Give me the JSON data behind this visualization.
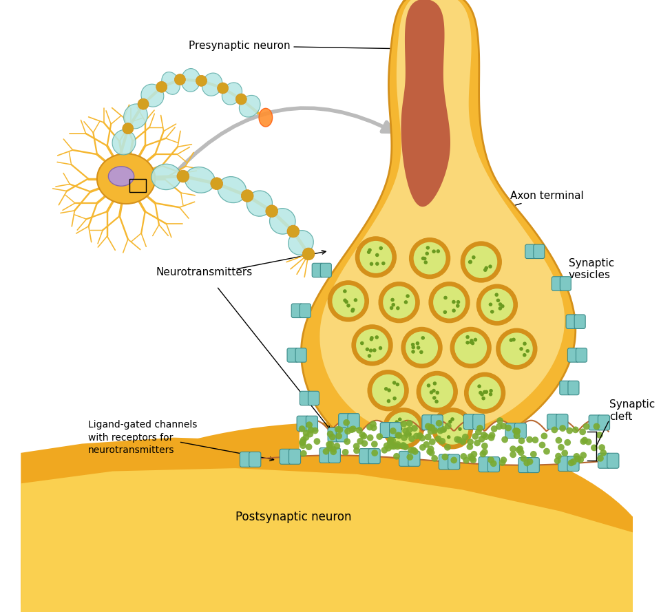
{
  "background_color": "#ffffff",
  "golden": "#F5B731",
  "golden_dark": "#D4901A",
  "golden_mid": "#F0A820",
  "golden_light": "#FAD878",
  "golden_pale": "#FDE9AA",
  "inner_red": "#C06040",
  "vesicle_ring": "#D4901A",
  "vesicle_fill": "#D8E878",
  "vesicle_dot": "#6A9A20",
  "channel_fill": "#7EC8C4",
  "channel_edge": "#3A8A88",
  "nt_dot": "#7AAA30",
  "cleft_white": "#FFFFFF",
  "membrane_line": "#B86830",
  "post_outer": "#F0A820",
  "post_inner": "#FAD050",
  "myelin_fill": "#B8E8E5",
  "myelin_edge": "#5AAAA5",
  "node_gold": "#D4A020",
  "gray_arrow": "#BBBBBB",
  "labels": {
    "presynaptic": "Presynaptic neuron",
    "axon_terminal": "Axon terminal",
    "synaptic_vesicles": "Synaptic\nvesicles",
    "neurotransmitters": "Neurotransmitters",
    "ligand_gated": "Ligand-gated channels\nwith receptors for\nneurotransmitters",
    "synaptic_cleft": "Synaptic\ncleft",
    "postsynaptic": "Postsynaptic neuron"
  }
}
